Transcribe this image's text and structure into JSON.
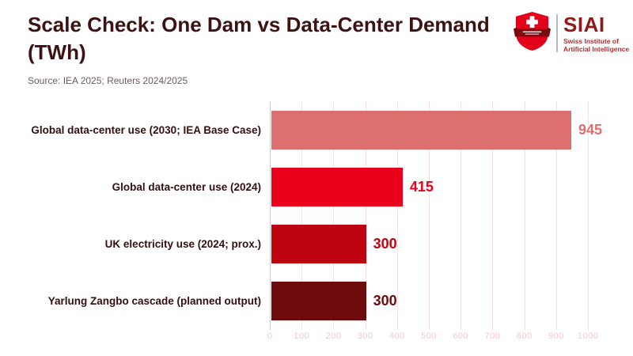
{
  "header": {
    "title": "Scale Check: One Dam vs Data-Center Demand (TWh)",
    "source": "Source: IEA 2025; Reuters 2024/2025"
  },
  "logo": {
    "brand": "SIAI",
    "name_line1": "Swiss Institute of",
    "name_line2": "Artificial Intelligence",
    "shield_color": "#e2001a",
    "banner_color": "#7a0c10",
    "brand_color": "#8e1a1a"
  },
  "chart_data": {
    "type": "bar",
    "orientation": "horizontal",
    "title": "Scale Check: One Dam vs Data-Center Demand (TWh)",
    "subtitle": "Source: IEA 2025; Reuters 2024/2025",
    "unit": "TWh",
    "categories": [
      "Global data-center use (2030; IEA Base Case)",
      "Global data-center use (2024)",
      "UK electricity use (2024; prox.)",
      "Yarlung Zangbo cascade (planned output)"
    ],
    "values": [
      945,
      415,
      300,
      300
    ],
    "value_labels": [
      "945",
      "415",
      "300",
      "300"
    ],
    "bar_colors": [
      "#dd6f6f",
      "#e9001a",
      "#bf0411",
      "#6e0b0c"
    ],
    "x_ticks": [
      0,
      100,
      200,
      300,
      400,
      500,
      600,
      700,
      800,
      900,
      1000
    ],
    "xlim": [
      0,
      1067
    ],
    "grid": true,
    "legend": false,
    "gridline_color": "#f7e1e1",
    "zero_spine_color": "#cccccc",
    "tick_label_color": "#f5c9c9"
  }
}
